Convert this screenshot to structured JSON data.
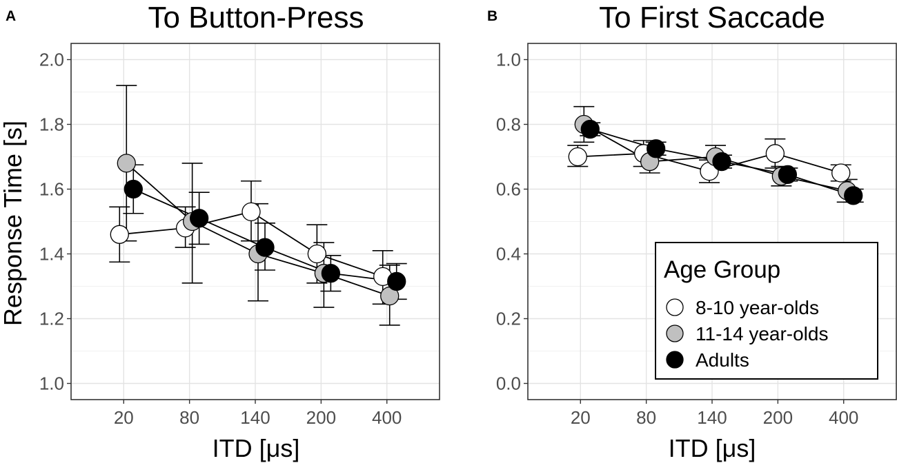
{
  "figure": {
    "shared": {
      "xlabel": "ITD [μs]",
      "categories": [
        "20",
        "80",
        "140",
        "200",
        "400"
      ],
      "series_colors": {
        "8-10 year-olds": "#ffffff",
        "11-14 year-olds": "#c0c0c0",
        "Adults": "#000000"
      }
    }
  },
  "legend": {
    "title": "Age Group",
    "items": [
      "8-10 year-olds",
      "11-14 year-olds",
      "Adults"
    ]
  },
  "chart_data": [
    {
      "panel_letter": "A",
      "type": "line",
      "title": "To Button-Press",
      "xlabel": "ITD [μs]",
      "ylabel": "Response Time [s]",
      "categories": [
        "20",
        "80",
        "140",
        "200",
        "400"
      ],
      "ylim": [
        0.95,
        2.05
      ],
      "yticks": [
        "1.0",
        "1.2",
        "1.4",
        "1.6",
        "1.8",
        "2.0"
      ],
      "grid": true,
      "series": [
        {
          "name": "8-10 year-olds",
          "values": [
            1.46,
            1.48,
            1.53,
            1.4,
            1.33
          ],
          "err_low": [
            1.375,
            1.42,
            1.44,
            1.31,
            1.245
          ],
          "err_high": [
            1.545,
            1.545,
            1.625,
            1.49,
            1.41
          ]
        },
        {
          "name": "11-14 year-olds",
          "values": [
            1.68,
            1.5,
            1.4,
            1.34,
            1.27
          ],
          "err_low": [
            1.44,
            1.31,
            1.255,
            1.235,
            1.18
          ],
          "err_high": [
            1.92,
            1.68,
            1.555,
            1.435,
            1.365
          ]
        },
        {
          "name": "Adults",
          "values": [
            1.6,
            1.51,
            1.42,
            1.34,
            1.315
          ],
          "err_low": [
            1.525,
            1.43,
            1.35,
            1.285,
            1.26
          ],
          "err_high": [
            1.675,
            1.59,
            1.495,
            1.395,
            1.37
          ]
        }
      ]
    },
    {
      "panel_letter": "B",
      "type": "line",
      "title": "To First Saccade",
      "xlabel": "ITD [μs]",
      "ylabel": "",
      "categories": [
        "20",
        "80",
        "140",
        "200",
        "400"
      ],
      "ylim": [
        -0.05,
        1.05
      ],
      "yticks": [
        "0.0",
        "0.2",
        "0.4",
        "0.6",
        "0.8",
        "1.0"
      ],
      "grid": true,
      "legend_position": "bottom-right",
      "series": [
        {
          "name": "8-10 year-olds",
          "values": [
            0.7,
            0.71,
            0.655,
            0.71,
            0.65
          ],
          "err_low": [
            0.67,
            0.67,
            0.62,
            0.665,
            0.625
          ],
          "err_high": [
            0.735,
            0.75,
            0.69,
            0.755,
            0.675
          ]
        },
        {
          "name": "11-14 year-olds",
          "values": [
            0.8,
            0.685,
            0.7,
            0.64,
            0.595
          ],
          "err_low": [
            0.745,
            0.65,
            0.665,
            0.61,
            0.56
          ],
          "err_high": [
            0.855,
            0.72,
            0.735,
            0.67,
            0.63
          ]
        },
        {
          "name": "Adults",
          "values": [
            0.785,
            0.725,
            0.685,
            0.645,
            0.58
          ],
          "err_low": [
            0.765,
            0.705,
            0.665,
            0.625,
            0.56
          ],
          "err_high": [
            0.805,
            0.745,
            0.705,
            0.665,
            0.6
          ]
        }
      ]
    }
  ]
}
